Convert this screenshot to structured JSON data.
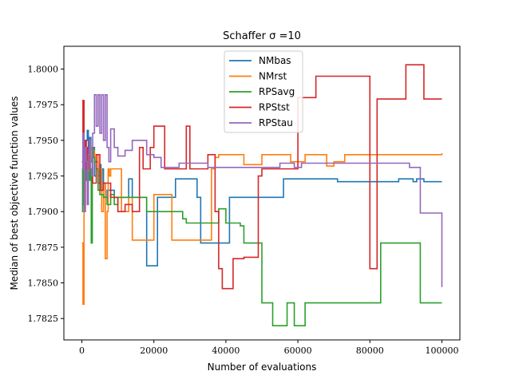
{
  "chart_data": {
    "type": "line",
    "title": "Schaffer σ =10",
    "xlabel": "Number of evaluations",
    "ylabel": "Median of best objective function values",
    "xlim": [
      -5000,
      105000
    ],
    "ylim": [
      1.781,
      1.8016
    ],
    "xticks": [
      0,
      20000,
      40000,
      60000,
      80000,
      100000
    ],
    "xtick_labels": [
      "0",
      "20000",
      "40000",
      "60000",
      "80000",
      "100000"
    ],
    "yticks": [
      1.7825,
      1.785,
      1.7875,
      1.79,
      1.7925,
      1.795,
      1.7975,
      1.8
    ],
    "ytick_labels": [
      "1.7825",
      "1.7850",
      "1.7875",
      "1.7900",
      "1.7925",
      "1.7950",
      "1.7975",
      "1.8000"
    ],
    "grid": false,
    "legend_position": "top-center",
    "series": [
      {
        "name": "NMbas",
        "color": "#1f77b4",
        "x": [
          0,
          300,
          600,
          900,
          1200,
          1500,
          1800,
          2100,
          2500,
          3000,
          3500,
          4000,
          4500,
          5000,
          5300,
          5600,
          6000,
          6500,
          7000,
          9000,
          13000,
          14000,
          15000,
          18000,
          19000,
          21000,
          22000,
          26000,
          32000,
          33000,
          34000,
          38000,
          41000,
          45000,
          56000,
          60000,
          71000,
          78000,
          88000,
          92000,
          93000,
          95000,
          100000
        ],
        "y": [
          1.7905,
          1.7935,
          1.7925,
          1.7945,
          1.795,
          1.7957,
          1.794,
          1.7952,
          1.7935,
          1.7945,
          1.7925,
          1.7935,
          1.792,
          1.7933,
          1.7915,
          1.793,
          1.792,
          1.791,
          1.7915,
          1.791,
          1.7923,
          1.791,
          1.791,
          1.7862,
          1.7862,
          1.791,
          1.791,
          1.7923,
          1.791,
          1.7878,
          1.7878,
          1.7878,
          1.791,
          1.791,
          1.7923,
          1.7923,
          1.7921,
          1.7921,
          1.7923,
          1.7921,
          1.7923,
          1.7921,
          1.7921
        ]
      },
      {
        "name": "NMrst",
        "color": "#ff7f0e",
        "x": [
          0,
          300,
          600,
          800,
          1000,
          1300,
          1600,
          2000,
          2500,
          3000,
          3500,
          4000,
          4500,
          5000,
          5500,
          6000,
          6500,
          7000,
          7300,
          7600,
          8000,
          11000,
          13000,
          14000,
          17000,
          20000,
          21000,
          25000,
          26000,
          31000,
          32000,
          36000,
          37000,
          38000,
          45000,
          50000,
          56000,
          58000,
          62000,
          68000,
          70000,
          73000,
          85000,
          100000
        ],
        "y": [
          1.7878,
          1.7835,
          1.7935,
          1.79,
          1.793,
          1.794,
          1.7925,
          1.7943,
          1.7938,
          1.7943,
          1.7935,
          1.794,
          1.7925,
          1.793,
          1.79,
          1.792,
          1.7867,
          1.79,
          1.793,
          1.7925,
          1.793,
          1.79,
          1.791,
          1.788,
          1.788,
          1.7912,
          1.7912,
          1.788,
          1.788,
          1.788,
          1.788,
          1.793,
          1.7938,
          1.794,
          1.7933,
          1.794,
          1.794,
          1.7935,
          1.794,
          1.7932,
          1.7935,
          1.794,
          1.794,
          1.7941
        ]
      },
      {
        "name": "RPSavg",
        "color": "#2ca02c",
        "x": [
          0,
          200,
          500,
          800,
          1100,
          1400,
          1700,
          2000,
          2300,
          2600,
          2900,
          3200,
          3500,
          4000,
          4500,
          5000,
          6000,
          7000,
          8000,
          9000,
          10000,
          11000,
          18000,
          22000,
          28000,
          29000,
          30000,
          38000,
          40000,
          44000,
          45000,
          50000,
          51000,
          53000,
          57000,
          59000,
          60000,
          62000,
          65000,
          70000,
          83000,
          94000,
          100000
        ],
        "y": [
          1.79,
          1.793,
          1.791,
          1.794,
          1.7922,
          1.7932,
          1.7928,
          1.7922,
          1.793,
          1.7878,
          1.7945,
          1.7938,
          1.7935,
          1.793,
          1.7915,
          1.7912,
          1.791,
          1.7905,
          1.7912,
          1.7905,
          1.791,
          1.791,
          1.79,
          1.79,
          1.7895,
          1.7892,
          1.7892,
          1.7902,
          1.7892,
          1.789,
          1.7878,
          1.7836,
          1.7836,
          1.782,
          1.7836,
          1.782,
          1.782,
          1.7836,
          1.7836,
          1.7836,
          1.7878,
          1.7836,
          1.7836
        ]
      },
      {
        "name": "RPStst",
        "color": "#d62728",
        "x": [
          0,
          300,
          600,
          900,
          1200,
          1500,
          2000,
          3000,
          4000,
          5000,
          6000,
          8000,
          10000,
          12000,
          14000,
          16000,
          17000,
          19000,
          20000,
          23000,
          29000,
          30000,
          35000,
          37000,
          38000,
          39000,
          42000,
          45000,
          49000,
          50000,
          60000,
          65000,
          80000,
          82000,
          85000,
          90000,
          95000,
          100000
        ],
        "y": [
          1.7935,
          1.7978,
          1.7915,
          1.795,
          1.793,
          1.7945,
          1.793,
          1.792,
          1.794,
          1.7915,
          1.792,
          1.791,
          1.79,
          1.7905,
          1.79,
          1.7945,
          1.793,
          1.7945,
          1.796,
          1.793,
          1.796,
          1.793,
          1.794,
          1.79,
          1.786,
          1.7846,
          1.7867,
          1.7868,
          1.7925,
          1.793,
          1.798,
          1.7995,
          1.786,
          1.7979,
          1.7979,
          1.8003,
          1.7979,
          1.7979
        ]
      },
      {
        "name": "RPStau",
        "color": "#9467bd",
        "x": [
          0,
          300,
          600,
          900,
          1200,
          1500,
          1800,
          2100,
          2400,
          2700,
          3000,
          3500,
          4000,
          4500,
          5000,
          5500,
          6000,
          6500,
          7000,
          7500,
          8000,
          9000,
          10000,
          12000,
          14000,
          17000,
          18000,
          20000,
          22000,
          27000,
          35000,
          45000,
          55000,
          59000,
          61000,
          68000,
          70000,
          85000,
          91000,
          94000,
          99000,
          100000
        ],
        "y": [
          1.793,
          1.7955,
          1.79,
          1.7945,
          1.7935,
          1.7905,
          1.794,
          1.795,
          1.793,
          1.7925,
          1.7955,
          1.7982,
          1.796,
          1.7982,
          1.7955,
          1.7982,
          1.795,
          1.7982,
          1.7945,
          1.7935,
          1.7958,
          1.7945,
          1.7939,
          1.7943,
          1.795,
          1.795,
          1.794,
          1.7938,
          1.7931,
          1.7934,
          1.7931,
          1.7931,
          1.7934,
          1.7931,
          1.7934,
          1.7934,
          1.7934,
          1.7934,
          1.7931,
          1.7899,
          1.7899,
          1.7847
        ]
      }
    ]
  }
}
